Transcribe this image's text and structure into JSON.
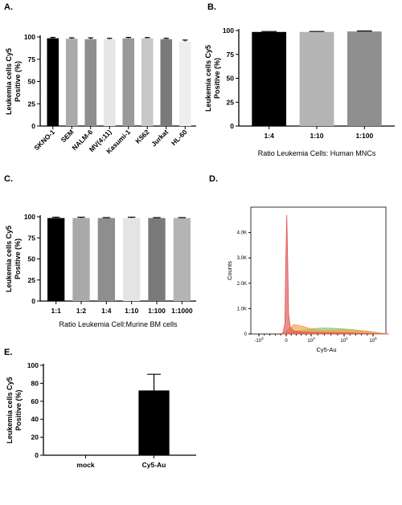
{
  "panels": {
    "A": "A.",
    "B": "B.",
    "C": "C.",
    "D": "D.",
    "E": "E."
  },
  "chart_data": [
    {
      "id": "A",
      "type": "bar",
      "ylabel_line1": "Leukemia cells Cy5",
      "ylabel_line2": "Positive (%)",
      "xlabel": "",
      "ylim": [
        0,
        100
      ],
      "yticks": [
        "0",
        "25",
        "50",
        "75",
        "100"
      ],
      "categories": [
        "SKNO-1",
        "SEM",
        "NALM-6",
        "MV(4;11)",
        "Kasumi-1",
        "K562",
        "Jurkat",
        "HL-60"
      ],
      "values": [
        98.5,
        98,
        97.5,
        97.5,
        98.5,
        98.5,
        97.5,
        95
      ],
      "errors": [
        1,
        1,
        1.5,
        1,
        1,
        0.8,
        1,
        1.5
      ],
      "colors": [
        "#000000",
        "#a9a9a9",
        "#8e8e8e",
        "#e6e6e6",
        "#999999",
        "#c8c8c8",
        "#7a7a7a",
        "#eeeeee"
      ]
    },
    {
      "id": "B",
      "type": "bar",
      "ylabel_line1": "Leukemia cells Cy5",
      "ylabel_line2": "Positive (%)",
      "xlabel": "Ratio Leukemia Cells: Human MNCs",
      "ylim": [
        0,
        100
      ],
      "yticks": [
        "0",
        "25",
        "50",
        "75",
        "100"
      ],
      "categories": [
        "1:4",
        "1:10",
        "1:100"
      ],
      "values": [
        98.5,
        98.5,
        99
      ],
      "errors": [
        0.5,
        0.5,
        0.5
      ],
      "colors": [
        "#000000",
        "#b4b4b4",
        "#8e8e8e"
      ]
    },
    {
      "id": "C",
      "type": "bar",
      "ylabel_line1": "Leukemia cells Cy5",
      "ylabel_line2": "Positive (%)",
      "xlabel": "Ratio Leukemia Cell:Murine BM cells",
      "ylim": [
        0,
        100
      ],
      "yticks": [
        "0",
        "25",
        "50",
        "75",
        "100"
      ],
      "categories": [
        "1:1",
        "1:2",
        "1:4",
        "1:10",
        "1:100",
        "1:1000"
      ],
      "values": [
        98.5,
        98.5,
        98.5,
        98.5,
        98.5,
        98.5
      ],
      "errors": [
        1,
        1,
        0.5,
        1,
        0.5,
        0.5
      ],
      "colors": [
        "#000000",
        "#a9a9a9",
        "#8e8e8e",
        "#e4e4e4",
        "#7a7a7a",
        "#b4b4b4"
      ]
    },
    {
      "id": "D",
      "type": "area",
      "ylabel": "Counts",
      "xlabel": "Cy5-Au",
      "yticks": [
        "0",
        "1.0K",
        "2.0K",
        "3.0K",
        "4.0K"
      ],
      "ylim": [
        0,
        5000
      ],
      "xticks": [
        "-10^3",
        "0",
        "10^3",
        "10^4",
        "10^5"
      ],
      "series": [
        {
          "color": "#e05252",
          "x": [
            -0.2,
            -0.1,
            0,
            0.05,
            0.1,
            0.15,
            0.2,
            0.3,
            0.5,
            1,
            2,
            3,
            4,
            5
          ],
          "y": [
            0,
            50,
            400,
            3000,
            4700,
            3000,
            800,
            250,
            120,
            80,
            60,
            40,
            20,
            0
          ]
        },
        {
          "color": "#f2a04a",
          "x": [
            -0.2,
            0,
            0.2,
            0.5,
            1,
            1.5,
            2,
            2.5,
            3,
            3.5,
            4,
            4.5,
            5
          ],
          "y": [
            0,
            40,
            180,
            380,
            300,
            180,
            140,
            150,
            170,
            140,
            100,
            40,
            0
          ]
        },
        {
          "color": "#7fc86e",
          "x": [
            -0.2,
            0,
            0.5,
            1,
            1.5,
            2,
            2.5,
            3,
            3.5,
            4,
            4.5,
            5
          ],
          "y": [
            0,
            20,
            80,
            150,
            210,
            240,
            220,
            190,
            150,
            110,
            50,
            0
          ]
        }
      ]
    },
    {
      "id": "E",
      "type": "bar",
      "ylabel_line1": "Leukemia cells Cy5",
      "ylabel_line2": "Positive (%)",
      "xlabel": "",
      "ylim": [
        0,
        100
      ],
      "yticks": [
        "0",
        "20",
        "40",
        "60",
        "80",
        "100"
      ],
      "categories": [
        "mock",
        "Cy5-Au"
      ],
      "values": [
        0,
        72
      ],
      "errors": [
        0,
        18
      ],
      "colors": [
        "#000000",
        "#000000"
      ]
    }
  ]
}
